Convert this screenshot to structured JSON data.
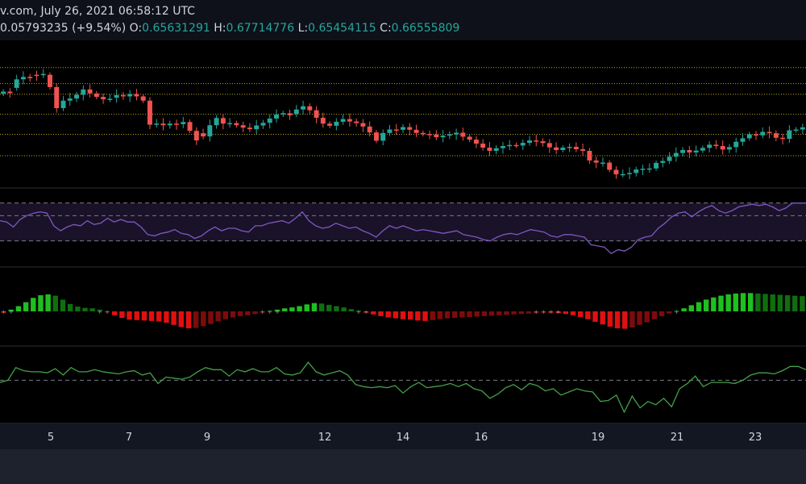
{
  "header": {
    "source_date": "v.com, July 26, 2021 06:58:12 UTC",
    "change": "0.05793235 (+9.54%)",
    "o_label": "O:",
    "o_value": "0.65631291",
    "h_label": "H:",
    "h_value": "0.67714776",
    "l_label": "L:",
    "l_value": "0.65454115",
    "c_label": "C:",
    "c_value": "0.66555809"
  },
  "colors": {
    "background": "#000000",
    "up": "#26a69a",
    "down": "#ef5350",
    "grid": "#b9a61a",
    "rsi_line": "#7e57c2",
    "rsi_band": "#1a1228",
    "hist_pos_strong": "#1fbf1f",
    "hist_pos_weak": "#0f6e0f",
    "hist_neg_strong": "#e01010",
    "hist_neg_weak": "#7d0b0b",
    "osc_line": "#43a047",
    "axis_text": "#d1d4dc"
  },
  "chart_data": [
    {
      "type": "candlestick",
      "x_ticks": [
        "5",
        "7",
        "9",
        "12",
        "14",
        "16",
        "19",
        "21",
        "23"
      ],
      "closes": [
        0.6088,
        0.6082,
        0.6134,
        0.6143,
        0.6138,
        0.6149,
        0.6154,
        0.6105,
        0.6026,
        0.6054,
        0.6062,
        0.6076,
        0.6096,
        0.6081,
        0.6068,
        0.6059,
        0.6061,
        0.6075,
        0.607,
        0.6079,
        0.607,
        0.6054,
        0.5964,
        0.5968,
        0.5962,
        0.5968,
        0.5966,
        0.5974,
        0.5941,
        0.5905,
        0.592,
        0.5962,
        0.5989,
        0.5968,
        0.597,
        0.5962,
        0.5953,
        0.5947,
        0.5961,
        0.5971,
        0.5987,
        0.6002,
        0.6007,
        0.5999,
        0.6021,
        0.6033,
        0.6018,
        0.599,
        0.5968,
        0.596,
        0.5975,
        0.5985,
        0.5976,
        0.597,
        0.5957,
        0.5935,
        0.5904,
        0.5933,
        0.5946,
        0.5945,
        0.5955,
        0.5945,
        0.5933,
        0.5929,
        0.5927,
        0.5917,
        0.5923,
        0.5928,
        0.5934,
        0.5919,
        0.5908,
        0.5893,
        0.5878,
        0.5866,
        0.5876,
        0.5884,
        0.5888,
        0.5886,
        0.5896,
        0.5905,
        0.5902,
        0.5895,
        0.5879,
        0.5869,
        0.5878,
        0.5881,
        0.5872,
        0.5866,
        0.583,
        0.5822,
        0.5822,
        0.5795,
        0.5778,
        0.5779,
        0.5783,
        0.5796,
        0.5799,
        0.58,
        0.5821,
        0.5828,
        0.5844,
        0.5858,
        0.5869,
        0.586,
        0.5867,
        0.5877,
        0.5889,
        0.5884,
        0.5871,
        0.588,
        0.59,
        0.5913,
        0.5928,
        0.5924,
        0.5937,
        0.5932,
        0.5915,
        0.5911,
        0.5943,
        0.5946,
        0.5954
      ],
      "opens": [
        0.608,
        0.6088,
        0.6102,
        0.6134,
        0.6143,
        0.6151,
        0.6154,
        0.6151,
        0.6105,
        0.6026,
        0.6054,
        0.6062,
        0.6076,
        0.6096,
        0.6081,
        0.6068,
        0.6059,
        0.6065,
        0.6075,
        0.607,
        0.6079,
        0.607,
        0.6054,
        0.5964,
        0.5968,
        0.5962,
        0.5968,
        0.5966,
        0.5974,
        0.5941,
        0.5932,
        0.592,
        0.5962,
        0.5989,
        0.5968,
        0.597,
        0.5962,
        0.5953,
        0.5947,
        0.5961,
        0.5971,
        0.5987,
        0.6002,
        0.6007,
        0.6004,
        0.6021,
        0.6033,
        0.6018,
        0.599,
        0.5968,
        0.596,
        0.5975,
        0.5985,
        0.5976,
        0.597,
        0.5957,
        0.5935,
        0.5904,
        0.5933,
        0.5946,
        0.5945,
        0.5955,
        0.5945,
        0.5933,
        0.5929,
        0.5927,
        0.5917,
        0.5923,
        0.5928,
        0.5934,
        0.5919,
        0.5908,
        0.5893,
        0.5878,
        0.5866,
        0.5876,
        0.5884,
        0.5888,
        0.5886,
        0.5896,
        0.5905,
        0.5902,
        0.5895,
        0.5879,
        0.5869,
        0.5878,
        0.5881,
        0.5872,
        0.5866,
        0.583,
        0.5822,
        0.5822,
        0.5795,
        0.5778,
        0.5779,
        0.5783,
        0.5796,
        0.5799,
        0.58,
        0.5821,
        0.5828,
        0.5844,
        0.5858,
        0.5869,
        0.586,
        0.5867,
        0.5877,
        0.5889,
        0.5884,
        0.5871,
        0.588,
        0.59,
        0.5913,
        0.5928,
        0.5924,
        0.5937,
        0.5932,
        0.5915,
        0.5911,
        0.5943,
        0.5946
      ],
      "grid_levels": [
        0.6178,
        0.6118,
        0.6078,
        0.6003,
        0.5928,
        0.5848
      ],
      "ylim": [
        0.573,
        0.628
      ]
    },
    {
      "type": "line",
      "name": "",
      "values": [
        56,
        55,
        51,
        57,
        60,
        62,
        63,
        62,
        52,
        48,
        51,
        53,
        52,
        56,
        53,
        54,
        58,
        55,
        57,
        55,
        55,
        51,
        45,
        44,
        46,
        47,
        49,
        46,
        45,
        42,
        44,
        48,
        51,
        48,
        50,
        50,
        48,
        47,
        52,
        52,
        54,
        55,
        56,
        54,
        58,
        63,
        56,
        52,
        50,
        51,
        54,
        52,
        50,
        51,
        48,
        46,
        43,
        48,
        52,
        50,
        52,
        50,
        48,
        49,
        48,
        47,
        46,
        47,
        48,
        45,
        44,
        43,
        41,
        40,
        43,
        45,
        46,
        45,
        47,
        49,
        48,
        47,
        44,
        43,
        45,
        45,
        44,
        43,
        37,
        36,
        35,
        30,
        33,
        32,
        35,
        41,
        43,
        44,
        50,
        54,
        59,
        62,
        63,
        59,
        63,
        66,
        68,
        64,
        62,
        64,
        67,
        68,
        69,
        68,
        69,
        67,
        64,
        66,
        70,
        70,
        70
      ],
      "ylim": [
        20,
        80
      ],
      "levels": [
        70,
        60,
        40
      ]
    },
    {
      "type": "bar",
      "name": "",
      "values": [
        -0.3,
        0.4,
        1.2,
        2.1,
        3.1,
        3.7,
        3.9,
        3.6,
        2.7,
        1.7,
        1.1,
        0.8,
        0.7,
        0.4,
        -0.2,
        -0.9,
        -1.5,
        -1.9,
        -2.0,
        -2.1,
        -2.2,
        -2.3,
        -2.6,
        -3.1,
        -3.6,
        -3.9,
        -3.8,
        -3.4,
        -2.9,
        -2.3,
        -1.8,
        -1.4,
        -1.1,
        -0.9,
        -0.6,
        -0.3,
        0.1,
        0.4,
        0.7,
        0.9,
        1.2,
        1.6,
        1.9,
        1.8,
        1.5,
        1.2,
        0.9,
        0.5,
        0.1,
        -0.3,
        -0.7,
        -1.1,
        -1.4,
        -1.6,
        -1.8,
        -1.9,
        -2.1,
        -2.2,
        -2.0,
        -1.8,
        -1.6,
        -1.5,
        -1.4,
        -1.3,
        -1.2,
        -1.1,
        -1.0,
        -0.9,
        -0.8,
        -0.7,
        -0.6,
        -0.5,
        -0.4,
        -0.3,
        -0.3,
        -0.4,
        -0.6,
        -0.9,
        -1.3,
        -1.8,
        -2.4,
        -3.0,
        -3.5,
        -3.9,
        -4.0,
        -3.7,
        -3.1,
        -2.5,
        -1.8,
        -1.1,
        -0.5,
        0.1,
        0.7,
        1.4,
        2.1,
        2.7,
        3.2,
        3.6,
        3.9,
        4.1,
        4.2,
        4.2,
        4.1,
        4.0,
        3.9,
        3.8,
        3.7,
        3.6,
        3.5
      ],
      "ylim": [
        -5,
        5
      ]
    },
    {
      "type": "line",
      "name": "",
      "values": [
        48,
        50,
        62,
        59,
        58,
        58,
        57,
        61,
        55,
        62,
        58,
        58,
        60,
        58,
        57,
        56,
        58,
        59,
        55,
        57,
        47,
        53,
        52,
        51,
        53,
        58,
        62,
        60,
        60,
        54,
        60,
        58,
        61,
        58,
        58,
        62,
        56,
        55,
        57,
        67,
        58,
        55,
        57,
        59,
        55,
        46,
        44,
        43,
        44,
        43,
        45,
        38,
        44,
        48,
        43,
        44,
        45,
        47,
        44,
        47,
        42,
        40,
        33,
        37,
        43,
        46,
        41,
        47,
        45,
        40,
        42,
        36,
        39,
        42,
        40,
        39,
        30,
        31,
        36,
        20,
        35,
        24,
        30,
        27,
        33,
        25,
        42,
        47,
        54,
        44,
        48,
        48,
        48,
        47,
        50,
        55,
        57,
        57,
        56,
        59,
        63,
        63,
        60
      ],
      "levels": [
        50
      ]
    }
  ]
}
